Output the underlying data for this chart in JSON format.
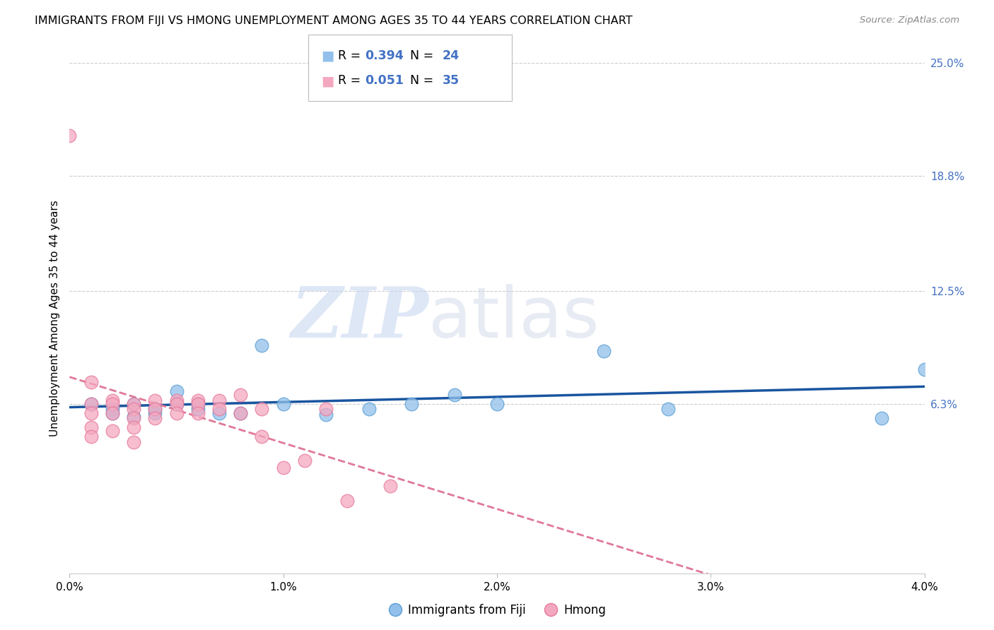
{
  "title": "IMMIGRANTS FROM FIJI VS HMONG UNEMPLOYMENT AMONG AGES 35 TO 44 YEARS CORRELATION CHART",
  "source": "Source: ZipAtlas.com",
  "ylabel": "Unemployment Among Ages 35 to 44 years",
  "xlim": [
    0.0,
    0.04
  ],
  "ylim": [
    -0.03,
    0.25
  ],
  "xticks": [
    0.0,
    0.01,
    0.02,
    0.03,
    0.04
  ],
  "xtick_labels": [
    "0.0%",
    "1.0%",
    "2.0%",
    "3.0%",
    "4.0%"
  ],
  "yticks_right": [
    0.063,
    0.125,
    0.188,
    0.25
  ],
  "ytick_labels_right": [
    "6.3%",
    "12.5%",
    "18.8%",
    "25.0%"
  ],
  "fiji_R": 0.394,
  "fiji_N": 24,
  "hmong_R": 0.051,
  "hmong_N": 35,
  "fiji_color": "#92c0ea",
  "hmong_color": "#f4a8bf",
  "fiji_edge_color": "#5a9fd4",
  "hmong_edge_color": "#e8789a",
  "fiji_line_color": "#1a55a0",
  "hmong_line_color": "#e07898",
  "fiji_x": [
    0.001,
    0.002,
    0.002,
    0.003,
    0.003,
    0.004,
    0.004,
    0.005,
    0.005,
    0.006,
    0.006,
    0.007,
    0.008,
    0.009,
    0.01,
    0.012,
    0.014,
    0.016,
    0.018,
    0.02,
    0.025,
    0.028,
    0.038,
    0.04
  ],
  "fiji_y": [
    0.063,
    0.06,
    0.058,
    0.063,
    0.056,
    0.058,
    0.06,
    0.063,
    0.07,
    0.063,
    0.06,
    0.058,
    0.058,
    0.095,
    0.063,
    0.057,
    0.06,
    0.063,
    0.068,
    0.063,
    0.092,
    0.06,
    0.055,
    0.082
  ],
  "hmong_x": [
    0.0,
    0.001,
    0.001,
    0.001,
    0.001,
    0.001,
    0.002,
    0.002,
    0.002,
    0.002,
    0.003,
    0.003,
    0.003,
    0.003,
    0.003,
    0.004,
    0.004,
    0.004,
    0.005,
    0.005,
    0.005,
    0.006,
    0.006,
    0.006,
    0.007,
    0.007,
    0.008,
    0.008,
    0.009,
    0.009,
    0.01,
    0.011,
    0.012,
    0.013,
    0.015
  ],
  "hmong_y": [
    0.21,
    0.075,
    0.063,
    0.058,
    0.05,
    0.045,
    0.065,
    0.063,
    0.058,
    0.048,
    0.063,
    0.06,
    0.055,
    0.05,
    0.042,
    0.065,
    0.06,
    0.055,
    0.065,
    0.063,
    0.058,
    0.065,
    0.063,
    0.058,
    0.065,
    0.06,
    0.068,
    0.058,
    0.06,
    0.045,
    0.028,
    0.032,
    0.06,
    0.01,
    0.018
  ],
  "background_color": "#ffffff",
  "grid_color": "#cccccc",
  "watermark_zip": "ZIP",
  "watermark_atlas": "atlas",
  "legend_fiji_label": "Immigrants from Fiji",
  "legend_hmong_label": "Hmong"
}
